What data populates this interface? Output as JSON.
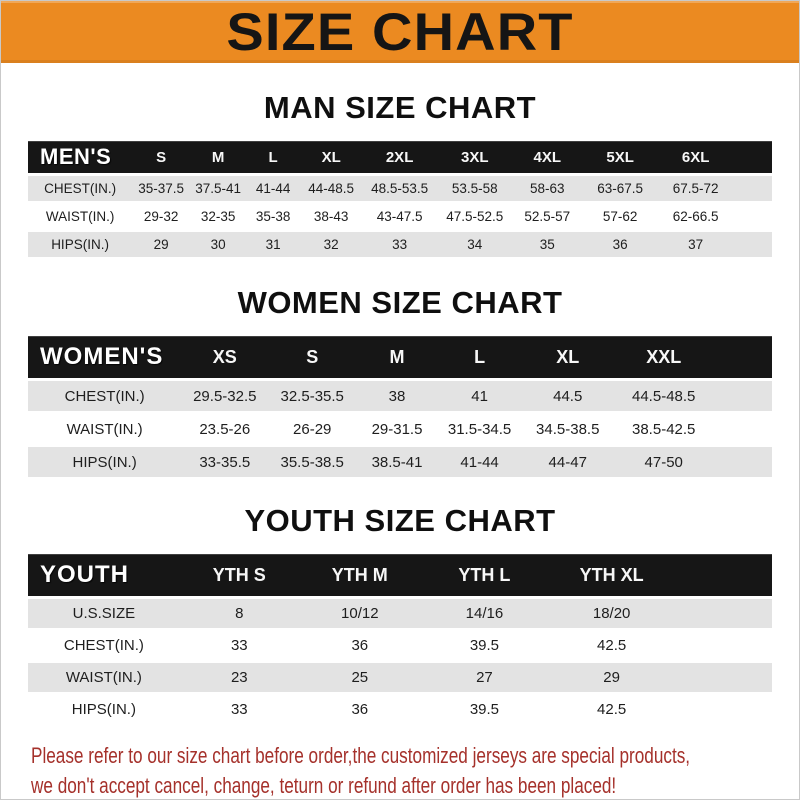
{
  "banner": {
    "title": "SIZE CHART"
  },
  "colors": {
    "banner_bg": "#EB8A21",
    "band_bg": "#161616",
    "row_alt": "#E3E3E3",
    "notice_red": "#A5312B"
  },
  "sections": [
    {
      "title": "MAN SIZE CHART",
      "table_label": "MEN'S",
      "columns": [
        "S",
        "M",
        "L",
        "XL",
        "2XL",
        "3XL",
        "4XL",
        "5XL",
        "6XL"
      ],
      "rows": [
        {
          "label": "CHEST(IN.)",
          "values": [
            "35-37.5",
            "37.5-41",
            "41-44",
            "44-48.5",
            "48.5-53.5",
            "53.5-58",
            "58-63",
            "63-67.5",
            "67.5-72"
          ]
        },
        {
          "label": "WAIST(IN.)",
          "values": [
            "29-32",
            "32-35",
            "35-38",
            "38-43",
            "43-47.5",
            "47.5-52.5",
            "52.5-57",
            "57-62",
            "62-66.5"
          ]
        },
        {
          "label": "HIPS(IN.)",
          "values": [
            "29",
            "30",
            "31",
            "32",
            "33",
            "34",
            "35",
            "36",
            "37"
          ]
        }
      ]
    },
    {
      "title": "WOMEN SIZE CHART",
      "table_label": "WOMEN'S",
      "columns": [
        "XS",
        "S",
        "M",
        "L",
        "XL",
        "XXL"
      ],
      "rows": [
        {
          "label": "CHEST(IN.)",
          "values": [
            "29.5-32.5",
            "32.5-35.5",
            "38",
            "41",
            "44.5",
            "44.5-48.5"
          ]
        },
        {
          "label": "WAIST(IN.)",
          "values": [
            "23.5-26",
            "26-29",
            "29-31.5",
            "31.5-34.5",
            "34.5-38.5",
            "38.5-42.5"
          ]
        },
        {
          "label": "HIPS(IN.)",
          "values": [
            "33-35.5",
            "35.5-38.5",
            "38.5-41",
            "41-44",
            "44-47",
            "47-50"
          ]
        }
      ]
    },
    {
      "title": "YOUTH SIZE CHART",
      "table_label": "YOUTH",
      "columns": [
        "YTH S",
        "YTH M",
        "YTH L",
        "YTH XL"
      ],
      "rows": [
        {
          "label": "U.S.SIZE",
          "values": [
            "8",
            "10/12",
            "14/16",
            "18/20"
          ]
        },
        {
          "label": "CHEST(IN.)",
          "values": [
            "33",
            "36",
            "39.5",
            "42.5"
          ]
        },
        {
          "label": "WAIST(IN.)",
          "values": [
            "23",
            "25",
            "27",
            "29"
          ]
        },
        {
          "label": "HIPS(IN.)",
          "values": [
            "33",
            "36",
            "39.5",
            "42.5"
          ]
        }
      ]
    }
  ],
  "notice": {
    "line1": "Please refer to our size chart before order,the customized jerseys are special products,",
    "line2": "we don't accept cancel, change, teturn or refund after order has been placed!"
  }
}
